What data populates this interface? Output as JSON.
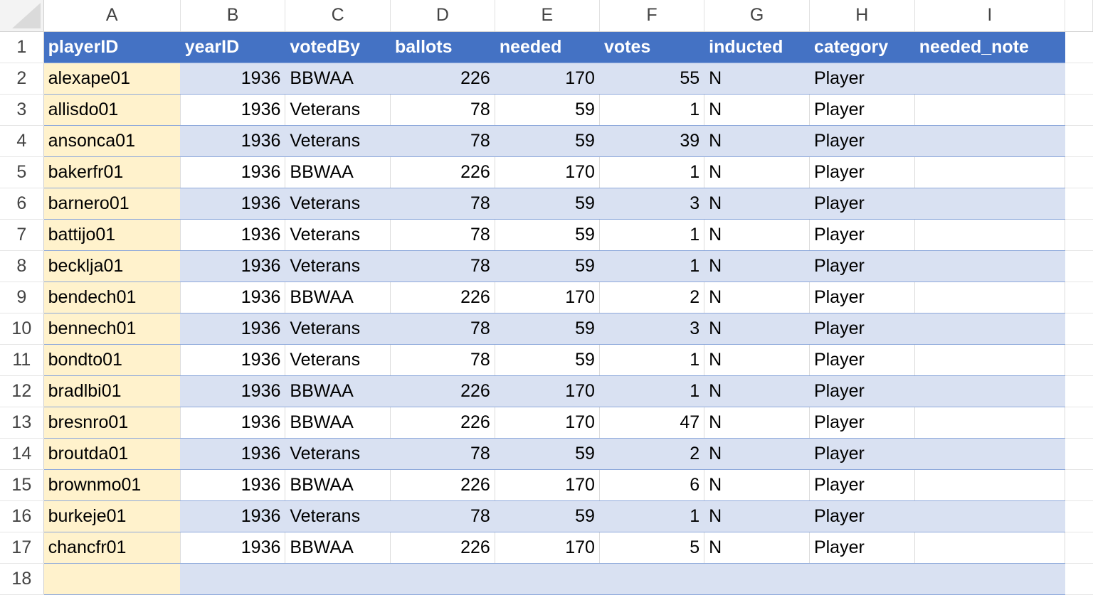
{
  "columns": [
    "A",
    "B",
    "C",
    "D",
    "E",
    "F",
    "G",
    "H",
    "I"
  ],
  "headers": [
    "playerID",
    "yearID",
    "votedBy",
    "ballots",
    "needed",
    "votes",
    "inducted",
    "category",
    "needed_note"
  ],
  "numeric_columns": [
    1,
    3,
    4,
    5
  ],
  "colors": {
    "header_bg": "#4472C4",
    "band_bg": "#D9E1F2",
    "key_column_bg": "#FFF2CC"
  },
  "rows": [
    [
      "alexape01",
      "1936",
      "BBWAA",
      "226",
      "170",
      "55",
      "N",
      "Player",
      ""
    ],
    [
      "allisdo01",
      "1936",
      "Veterans",
      "78",
      "59",
      "1",
      "N",
      "Player",
      ""
    ],
    [
      "ansonca01",
      "1936",
      "Veterans",
      "78",
      "59",
      "39",
      "N",
      "Player",
      ""
    ],
    [
      "bakerfr01",
      "1936",
      "BBWAA",
      "226",
      "170",
      "1",
      "N",
      "Player",
      ""
    ],
    [
      "barnero01",
      "1936",
      "Veterans",
      "78",
      "59",
      "3",
      "N",
      "Player",
      ""
    ],
    [
      "battijo01",
      "1936",
      "Veterans",
      "78",
      "59",
      "1",
      "N",
      "Player",
      ""
    ],
    [
      "becklja01",
      "1936",
      "Veterans",
      "78",
      "59",
      "1",
      "N",
      "Player",
      ""
    ],
    [
      "bendech01",
      "1936",
      "BBWAA",
      "226",
      "170",
      "2",
      "N",
      "Player",
      ""
    ],
    [
      "bennech01",
      "1936",
      "Veterans",
      "78",
      "59",
      "3",
      "N",
      "Player",
      ""
    ],
    [
      "bondto01",
      "1936",
      "Veterans",
      "78",
      "59",
      "1",
      "N",
      "Player",
      ""
    ],
    [
      "bradlbi01",
      "1936",
      "BBWAA",
      "226",
      "170",
      "1",
      "N",
      "Player",
      ""
    ],
    [
      "bresnro01",
      "1936",
      "BBWAA",
      "226",
      "170",
      "47",
      "N",
      "Player",
      ""
    ],
    [
      "broutda01",
      "1936",
      "Veterans",
      "78",
      "59",
      "2",
      "N",
      "Player",
      ""
    ],
    [
      "brownmo01",
      "1936",
      "BBWAA",
      "226",
      "170",
      "6",
      "N",
      "Player",
      ""
    ],
    [
      "burkeje01",
      "1936",
      "Veterans",
      "78",
      "59",
      "1",
      "N",
      "Player",
      ""
    ],
    [
      "chancfr01",
      "1936",
      "BBWAA",
      "226",
      "170",
      "5",
      "N",
      "Player",
      ""
    ]
  ]
}
